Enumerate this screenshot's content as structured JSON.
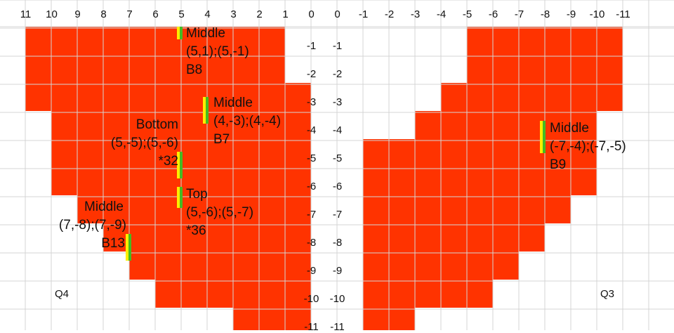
{
  "columns": [
    "11",
    "10",
    "9",
    "8",
    "7",
    "6",
    "5",
    "4",
    "3",
    "2",
    "1",
    "0",
    "0",
    "-1",
    "-2",
    "-3",
    "-4",
    "-5",
    "-6",
    "-7",
    "-8",
    "-9",
    "-10",
    "-11"
  ],
  "row_labels": [
    "-1",
    "-2",
    "-3",
    "-4",
    "-5",
    "-6",
    "-7",
    "-8",
    "-9",
    "-10",
    "-11"
  ],
  "fill_color": "#ff3300",
  "marker_colors": [
    "#ffee00",
    "#44bb22"
  ],
  "red_ranges": [
    [
      [
        0,
        10
      ]
    ],
    [
      [
        0,
        10
      ]
    ],
    [
      [
        0,
        11
      ]
    ],
    [
      [
        1,
        11
      ]
    ],
    [
      [
        1,
        11
      ]
    ],
    [
      [
        1,
        11
      ]
    ],
    [
      [
        2,
        11
      ]
    ],
    [
      [
        3,
        11
      ]
    ],
    [
      [
        4,
        11
      ]
    ],
    [
      [
        5,
        11
      ]
    ],
    [
      [
        8,
        11
      ]
    ]
  ],
  "red_ranges_right": [
    [
      [
        17,
        23
      ]
    ],
    [
      [
        17,
        23
      ]
    ],
    [
      [
        16,
        23
      ]
    ],
    [
      [
        15,
        22
      ]
    ],
    [
      [
        13,
        22
      ]
    ],
    [
      [
        13,
        22
      ]
    ],
    [
      [
        13,
        21
      ]
    ],
    [
      [
        13,
        20
      ]
    ],
    [
      [
        13,
        19
      ]
    ],
    [
      [
        13,
        18
      ]
    ],
    [
      [
        13,
        15
      ]
    ]
  ],
  "annotations": {
    "b8": {
      "label": "Middle",
      "coords": "(5,1);(5,-1)",
      "id": "B8"
    },
    "b7": {
      "label": "Middle",
      "coords": "(4,-3);(4,-4)",
      "id": "B7"
    },
    "bottom": {
      "label": "Bottom",
      "coords": "(5,-5);(5,-6)",
      "id": "*32"
    },
    "top": {
      "label": "Top",
      "coords": "(5,-6);(5,-7)",
      "id": "*36"
    },
    "b13": {
      "label": "Middle",
      "coords": "(7,-8);(7,-9)",
      "id": "B13"
    },
    "b9": {
      "label": "Middle",
      "coords": "(-7,-4);(-7,-5)",
      "id": "B9"
    }
  },
  "quadrants": {
    "left": "Q4",
    "right": "Q3"
  }
}
